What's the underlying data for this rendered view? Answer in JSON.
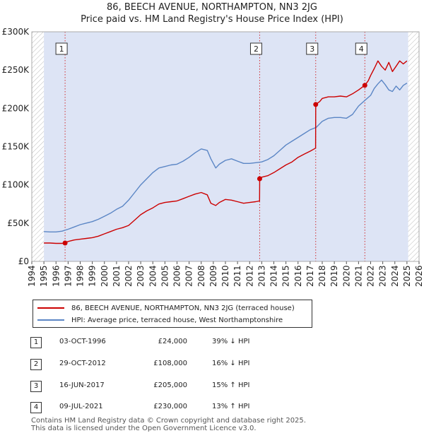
{
  "header": {
    "title_line1": "86, BEECH AVENUE, NORTHAMPTON, NN3 2JG",
    "title_line2": "Price paid vs. HM Land Registry's House Price Index (HPI)"
  },
  "legend": {
    "red_label": "86, BEECH AVENUE, NORTHAMPTON, NN3 2JG (terraced house)",
    "blue_label": "HPI: Average price, terraced house, West Northamptonshire"
  },
  "transactions": [
    {
      "num": "1",
      "date": "03-OCT-1996",
      "price": "£24,000",
      "hpi": "39% ↓ HPI"
    },
    {
      "num": "2",
      "date": "29-OCT-2012",
      "price": "£108,000",
      "hpi": "16% ↓ HPI"
    },
    {
      "num": "3",
      "date": "16-JUN-2017",
      "price": "£205,000",
      "hpi": "15% ↑ HPI"
    },
    {
      "num": "4",
      "date": "09-JUL-2021",
      "price": "£230,000",
      "hpi": "13% ↑ HPI"
    }
  ],
  "footer": {
    "line1": "Contains HM Land Registry data © Crown copyright and database right 2025.",
    "line2": "This data is licensed under the Open Government Licence v3.0."
  },
  "colors": {
    "price_line": "#cc0000",
    "hpi_line": "#5b86c5",
    "shade": "#dde4f5",
    "hatch": "#bbbbbb"
  },
  "chart_data": {
    "type": "line",
    "xlim": [
      1994,
      2026
    ],
    "ylim": [
      0,
      300000
    ],
    "y_ticks": [
      {
        "value": 0,
        "label": "£0"
      },
      {
        "value": 50000,
        "label": "£50K"
      },
      {
        "value": 100000,
        "label": "£100K"
      },
      {
        "value": 150000,
        "label": "£150K"
      },
      {
        "value": 200000,
        "label": "£200K"
      },
      {
        "value": 250000,
        "label": "£250K"
      },
      {
        "value": 300000,
        "label": "£300K"
      }
    ],
    "x_ticks": [
      "1994",
      "1995",
      "1996",
      "1997",
      "1998",
      "1999",
      "2000",
      "2001",
      "2002",
      "2003",
      "2004",
      "2005",
      "2006",
      "2007",
      "2008",
      "2009",
      "2010",
      "2011",
      "2012",
      "2013",
      "2014",
      "2015",
      "2016",
      "2017",
      "2018",
      "2019",
      "2020",
      "2021",
      "2022",
      "2023",
      "2024",
      "2025",
      "2026"
    ],
    "shaded_range": [
      1995.0,
      2025.1
    ],
    "hatched_before": 1995.0,
    "hatched_after": 2025.1,
    "markers": [
      {
        "label": "1",
        "x": 1996.75,
        "y": 24000
      },
      {
        "label": "2",
        "x": 2012.83,
        "y": 108000
      },
      {
        "label": "3",
        "x": 2017.46,
        "y": 205000
      },
      {
        "label": "4",
        "x": 2021.52,
        "y": 230000
      }
    ],
    "series": [
      {
        "name": "86, BEECH AVENUE, NORTHAMPTON, NN3 2JG (terraced house)",
        "x": [
          1995.0,
          1995.5,
          1996.0,
          1996.5,
          1996.75,
          1997.0,
          1997.5,
          1998.0,
          1998.5,
          1999.0,
          1999.5,
          2000.0,
          2000.5,
          2001.0,
          2001.5,
          2002.0,
          2002.5,
          2003.0,
          2003.5,
          2004.0,
          2004.5,
          2005.0,
          2005.5,
          2006.0,
          2006.5,
          2007.0,
          2007.5,
          2008.0,
          2008.5,
          2008.8,
          2009.2,
          2009.5,
          2010.0,
          2010.5,
          2011.0,
          2011.5,
          2012.0,
          2012.5,
          2012.82,
          2012.83,
          2013.0,
          2013.5,
          2014.0,
          2014.5,
          2015.0,
          2015.5,
          2016.0,
          2016.5,
          2017.0,
          2017.45,
          2017.46,
          2017.8,
          2018.0,
          2018.5,
          2019.0,
          2019.5,
          2020.0,
          2020.5,
          2021.0,
          2021.51,
          2021.52,
          2021.8,
          2022.0,
          2022.3,
          2022.6,
          2022.9,
          2023.2,
          2023.5,
          2023.8,
          2024.1,
          2024.4,
          2024.7,
          2025.0
        ],
        "y": [
          24000,
          24000,
          23500,
          23500,
          24000,
          26000,
          28000,
          29000,
          30000,
          31000,
          33000,
          36000,
          39000,
          42000,
          44000,
          47000,
          54000,
          61000,
          66000,
          70000,
          75000,
          77000,
          78000,
          79000,
          82000,
          85000,
          88000,
          90000,
          87000,
          76000,
          73000,
          77000,
          81000,
          80000,
          78000,
          76000,
          77000,
          78000,
          79000,
          108000,
          110000,
          112000,
          116000,
          121000,
          126000,
          130000,
          136000,
          140000,
          144000,
          148000,
          205000,
          209000,
          213000,
          215000,
          215000,
          216000,
          215000,
          219000,
          224000,
          230000,
          230000,
          236000,
          243000,
          252000,
          262000,
          255000,
          250000,
          260000,
          248000,
          255000,
          262000,
          258000,
          262000
        ]
      },
      {
        "name": "HPI: Average price, terraced house, West Northamptonshire",
        "x": [
          1995.0,
          1995.5,
          1996.0,
          1996.5,
          1997.0,
          1997.5,
          1998.0,
          1998.5,
          1999.0,
          1999.5,
          2000.0,
          2000.5,
          2001.0,
          2001.5,
          2002.0,
          2002.5,
          2003.0,
          2003.5,
          2004.0,
          2004.5,
          2005.0,
          2005.5,
          2006.0,
          2006.5,
          2007.0,
          2007.5,
          2008.0,
          2008.5,
          2008.8,
          2009.2,
          2009.5,
          2010.0,
          2010.5,
          2011.0,
          2011.5,
          2012.0,
          2012.5,
          2013.0,
          2013.5,
          2014.0,
          2014.5,
          2015.0,
          2015.5,
          2016.0,
          2016.5,
          2017.0,
          2017.5,
          2018.0,
          2018.5,
          2019.0,
          2019.5,
          2020.0,
          2020.5,
          2021.0,
          2021.5,
          2022.0,
          2022.3,
          2022.6,
          2022.9,
          2023.2,
          2023.5,
          2023.8,
          2024.1,
          2024.4,
          2024.7,
          2025.0
        ],
        "y": [
          39000,
          38500,
          38500,
          39500,
          42000,
          45000,
          48000,
          50000,
          52000,
          55000,
          59000,
          63000,
          68000,
          72000,
          80000,
          90000,
          100000,
          108000,
          116000,
          122000,
          124000,
          126000,
          127000,
          131000,
          136000,
          142000,
          147000,
          145000,
          134000,
          122000,
          127000,
          132000,
          134000,
          131000,
          128000,
          128000,
          129000,
          130000,
          133000,
          138000,
          145000,
          152000,
          157000,
          162000,
          167000,
          172000,
          175000,
          183000,
          187000,
          188000,
          188000,
          187000,
          192000,
          203000,
          210000,
          217000,
          226000,
          232000,
          237000,
          231000,
          224000,
          222000,
          229000,
          224000,
          230000,
          233000
        ]
      }
    ]
  }
}
